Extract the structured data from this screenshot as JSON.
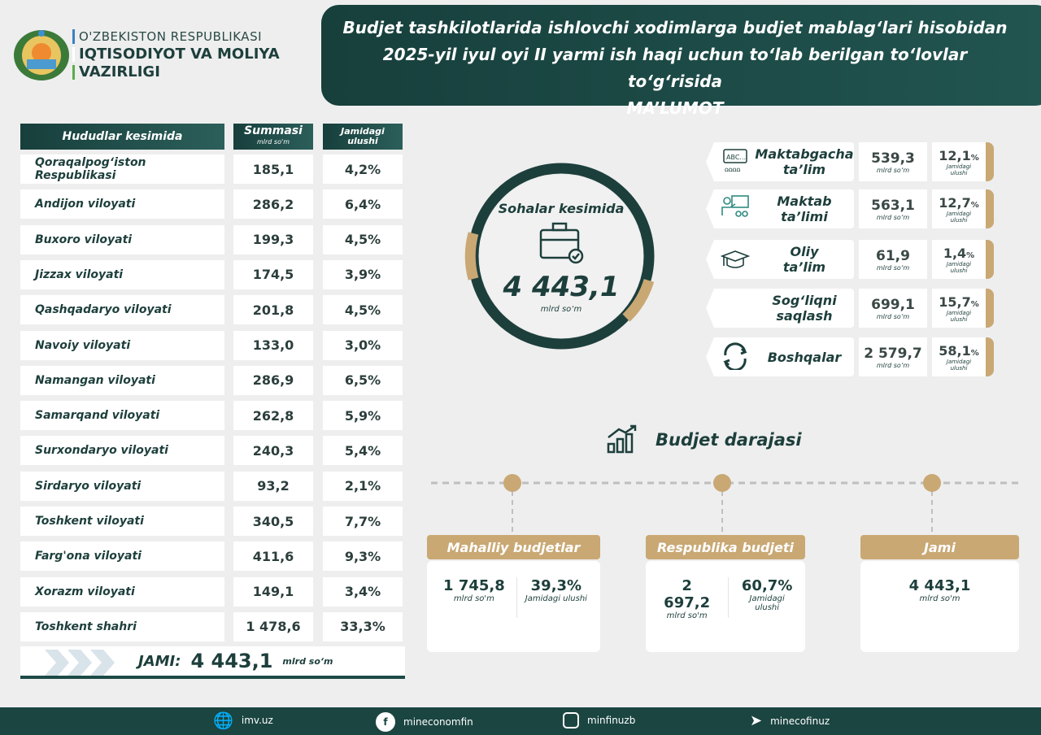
{
  "header": {
    "org_line1": "O'ZBEKISTON RESPUBLIKASI",
    "org_line2": "IQTISODIYOT VA MOLIYA",
    "org_line3": "VAZIRLIGI",
    "title_line1": "Budjet tashkilotlarida ishlovchi xodimlarga budjet mablag‘lari hisobidan",
    "title_line2": "2025-yil iyul oyi II yarmi ish haqi uchun to‘lab berilgan to‘lovlar to‘g‘risida",
    "title_line3": "MA’LUMOT"
  },
  "regions": {
    "col_region": "Hududlar kesimida",
    "col_sum": "Summasi",
    "col_sum_unit": "mlrd so'm",
    "col_share": "Jamidagi ulushi",
    "rows": [
      {
        "name": "Qoraqalpog‘iston Respublikasi",
        "sum": "185,1",
        "share": "4,2%"
      },
      {
        "name": "Andijon viloyati",
        "sum": "286,2",
        "share": "6,4%"
      },
      {
        "name": "Buxoro viloyati",
        "sum": "199,3",
        "share": "4,5%"
      },
      {
        "name": "Jizzax viloyati",
        "sum": "174,5",
        "share": "3,9%"
      },
      {
        "name": "Qashqadaryo viloyati",
        "sum": "201,8",
        "share": "4,5%"
      },
      {
        "name": "Navoiy viloyati",
        "sum": "133,0",
        "share": "3,0%"
      },
      {
        "name": "Namangan viloyati",
        "sum": "286,9",
        "share": "6,5%"
      },
      {
        "name": "Samarqand viloyati",
        "sum": "262,8",
        "share": "5,9%"
      },
      {
        "name": "Surxondaryo viloyati",
        "sum": "240,3",
        "share": "5,4%"
      },
      {
        "name": "Sirdaryo viloyati",
        "sum": "93,2",
        "share": "2,1%"
      },
      {
        "name": "Toshkent viloyati",
        "sum": "340,5",
        "share": "7,7%"
      },
      {
        "name": "Farg'ona viloyati",
        "sum": "411,6",
        "share": "9,3%"
      },
      {
        "name": "Xorazm viloyati",
        "sum": "149,1",
        "share": "3,4%"
      },
      {
        "name": "Toshkent shahri",
        "sum": "1 478,6",
        "share": "33,3%"
      }
    ],
    "total_label": "JAMI:",
    "total_value": "4 443,1",
    "total_unit": "mlrd so‘m"
  },
  "sectors": {
    "title": "Sohalar kesimida",
    "total": "4 443,1",
    "unit": "mlrd so‘m",
    "share_label": "Jamidagi ulushi",
    "items": [
      {
        "name1": "Maktabgacha",
        "name2": "ta’lim",
        "value": "539,3",
        "share": "12,1",
        "icon": "preschool-icon"
      },
      {
        "name1": "Maktab",
        "name2": "ta’limi",
        "value": "563,1",
        "share": "12,7",
        "icon": "teacher-icon"
      },
      {
        "name1": "Oliy",
        "name2": "ta’lim",
        "value": "61,9",
        "share": "1,4",
        "icon": "graduation-cap-icon"
      },
      {
        "name1": "Sog‘liqni",
        "name2": "saqlash",
        "value": "699,1",
        "share": "15,7",
        "icon": ""
      },
      {
        "name1": "Boshqalar",
        "name2": "",
        "value": "2 579,7",
        "share": "58,1",
        "icon": "refresh-icon"
      }
    ]
  },
  "levels": {
    "title": "Budjet darajasi",
    "unit": "mlrd so'm",
    "share_label": "Jamidagi ulushi",
    "items": [
      {
        "label": "Mahalliy budjetlar",
        "value": "1 745,8",
        "share": "39,3%"
      },
      {
        "label": "Respublika budjeti",
        "value": "2 697,2",
        "share": "60,7%"
      },
      {
        "label": "Jami",
        "value": "4 443,1",
        "share": ""
      }
    ]
  },
  "footer": {
    "website": "imv.uz",
    "facebook": "mineconomfin",
    "instagram": "minfinuzb",
    "telegram": "minecofinuz"
  },
  "colors": {
    "teal": "#1d3f3c",
    "gold": "#c9a874",
    "background": "#eeeeee"
  }
}
